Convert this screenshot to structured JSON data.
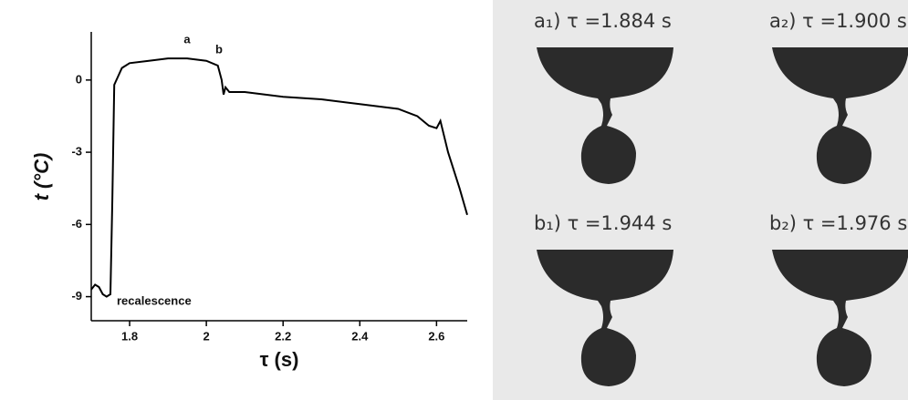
{
  "chart_data": {
    "type": "line",
    "xlabel": "τ (s)",
    "ylabel": "t (°C)",
    "x": [
      1.7,
      1.71,
      1.72,
      1.73,
      1.74,
      1.75,
      1.755,
      1.76,
      1.78,
      1.8,
      1.85,
      1.9,
      1.95,
      2.0,
      2.03,
      2.04,
      2.045,
      2.05,
      2.06,
      2.1,
      2.2,
      2.3,
      2.4,
      2.5,
      2.55,
      2.58,
      2.6,
      2.61,
      2.63,
      2.66,
      2.68
    ],
    "values": [
      -8.7,
      -8.5,
      -8.6,
      -8.9,
      -9.0,
      -8.9,
      -5.0,
      -0.2,
      0.5,
      0.7,
      0.8,
      0.9,
      0.9,
      0.8,
      0.6,
      0.0,
      -0.6,
      -0.3,
      -0.5,
      -0.5,
      -0.7,
      -0.8,
      -1.0,
      -1.2,
      -1.5,
      -1.9,
      -2.0,
      -1.7,
      -3.0,
      -4.5,
      -5.6
    ],
    "color": "#000000",
    "xlim": [
      1.7,
      2.68
    ],
    "xticks": [
      1.8,
      2.0,
      2.2,
      2.4,
      2.6
    ],
    "ylim": [
      -10,
      2
    ],
    "yticks": [
      -9,
      -6,
      -3,
      0
    ],
    "annotations": [
      "a",
      "b",
      "recalescence"
    ]
  },
  "panels": [
    "a₁) τ =1.884 s",
    "a₂) τ =1.900 s",
    "b₁) τ =1.944 s",
    "b₂) τ =1.976 s"
  ]
}
